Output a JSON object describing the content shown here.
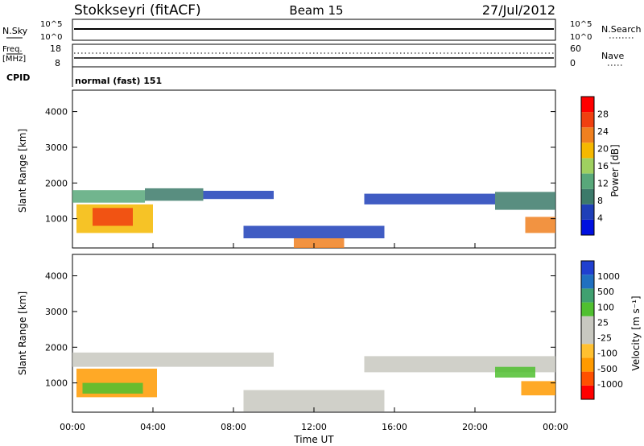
{
  "header": {
    "station": "Stokkseyri (fitACF)",
    "beam": "Beam 15",
    "date": "27/Jul/2012"
  },
  "params": {
    "nsky_label": "N.Sky",
    "nsky_ticks": [
      "10^5",
      "10^0"
    ],
    "nsearch_label": "N.Search",
    "freq_label": "Freq.",
    "freq_unit": "[MHz]",
    "freq_ticks": [
      "18",
      "8"
    ],
    "nave_label": "Nave",
    "nave_ticks": [
      "60",
      "0"
    ],
    "cpid_label": "CPID",
    "cpid_value": "normal (fast) 151"
  },
  "colors": {
    "power_scale": [
      "#0010e0",
      "#1f3fb8",
      "#3c7a6a",
      "#58a87a",
      "#9fd060",
      "#f5b800",
      "#f08020",
      "#f04010",
      "#ff0000"
    ],
    "velocity_scale": [
      "#ff0000",
      "#ff5000",
      "#ff9a00",
      "#ffc030",
      "#c8c8c0",
      "#c8c8c0",
      "#50c030",
      "#40a070",
      "#2070c0",
      "#2040d0"
    ]
  },
  "chart_data": [
    {
      "type": "heatmap",
      "ylabel": "Slant Range [km]",
      "yticks": [
        "1000",
        "2000",
        "3000",
        "4000"
      ],
      "colorbar_label": "Power [dB]",
      "colorbar_ticks": [
        "4",
        "8",
        "12",
        "16",
        "20",
        "24",
        "28"
      ],
      "xlim": [
        0,
        24
      ],
      "ylim": [
        180,
        4600
      ],
      "bands": [
        {
          "x": [
            0.0,
            3.6
          ],
          "y": [
            1450,
            1800
          ],
          "level": 3
        },
        {
          "x": [
            3.6,
            6.5
          ],
          "y": [
            1500,
            1850
          ],
          "level": 2
        },
        {
          "x": [
            6.5,
            10.0
          ],
          "y": [
            1550,
            1780
          ],
          "level": 1
        },
        {
          "x": [
            14.5,
            21.0
          ],
          "y": [
            1400,
            1700
          ],
          "level": 1
        },
        {
          "x": [
            21.0,
            24.0
          ],
          "y": [
            1250,
            1750
          ],
          "level": 2
        },
        {
          "x": [
            0.2,
            4.0
          ],
          "y": [
            600,
            1400
          ],
          "level": 5
        },
        {
          "x": [
            1.0,
            3.0
          ],
          "y": [
            800,
            1300
          ],
          "level": 7
        },
        {
          "x": [
            8.5,
            15.5
          ],
          "y": [
            450,
            800
          ],
          "level": 1
        },
        {
          "x": [
            11.0,
            13.5
          ],
          "y": [
            180,
            450
          ],
          "level": 6
        },
        {
          "x": [
            22.5,
            24.0
          ],
          "y": [
            600,
            1050
          ],
          "level": 6
        }
      ]
    },
    {
      "type": "heatmap",
      "ylabel": "Slant Range [km]",
      "yticks": [
        "1000",
        "2000",
        "3000",
        "4000"
      ],
      "colorbar_label": "Velocity [m s⁻¹]",
      "colorbar_ticks": [
        "-1000",
        "-500",
        "-100",
        "-25",
        "25",
        "100",
        "500",
        "1000"
      ],
      "xlabel": "Time UT",
      "xticks": [
        "00:00",
        "04:00",
        "08:00",
        "12:00",
        "16:00",
        "20:00",
        "00:00"
      ],
      "xlim": [
        0,
        24
      ],
      "ylim": [
        180,
        4600
      ],
      "bands": [
        {
          "x": [
            0.0,
            10.0
          ],
          "y": [
            1450,
            1850
          ],
          "level": 4
        },
        {
          "x": [
            14.5,
            24.0
          ],
          "y": [
            1300,
            1750
          ],
          "level": 4
        },
        {
          "x": [
            0.2,
            4.2
          ],
          "y": [
            600,
            1400
          ],
          "level": 2
        },
        {
          "x": [
            0.5,
            3.5
          ],
          "y": [
            700,
            1000
          ],
          "level": 6
        },
        {
          "x": [
            8.5,
            15.5
          ],
          "y": [
            200,
            800
          ],
          "level": 4
        },
        {
          "x": [
            21.0,
            23.0
          ],
          "y": [
            1150,
            1450
          ],
          "level": 6
        },
        {
          "x": [
            22.3,
            24.0
          ],
          "y": [
            650,
            1050
          ],
          "level": 2
        }
      ]
    }
  ]
}
